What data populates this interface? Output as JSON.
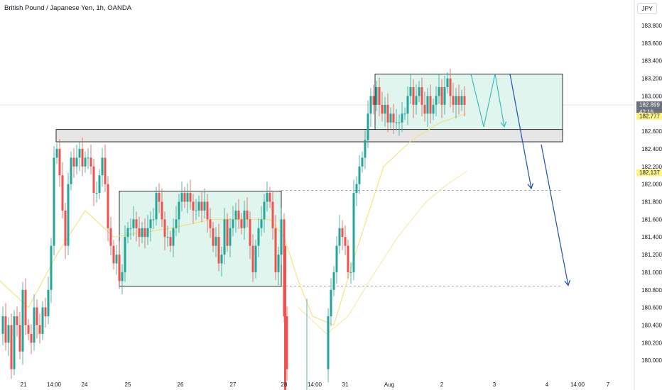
{
  "header": {
    "title": "British Pound / Japanese Yen, 1h, OANDA",
    "currency_button": "JPY"
  },
  "colors": {
    "up": "#26a69a",
    "down": "#ef5350",
    "zone_fill": "#e0f5ee",
    "resistance_fill": "#e6e6e6",
    "ma_fast": "#f5dd6a",
    "ma_slow": "#f9e79a",
    "arrow_teal": "#3fbcc0",
    "arrow_blue": "#1f4fb5"
  },
  "price_scale": [
    "183.800",
    "183.600",
    "183.400",
    "183.200",
    "183.000",
    "182.800",
    "182.600",
    "182.400",
    "182.200",
    "182.000",
    "181.800",
    "181.600",
    "181.400",
    "181.200",
    "181.000",
    "180.800",
    "180.600",
    "180.400",
    "180.200",
    "180.000"
  ],
  "time_axis": [
    "21",
    "14:00",
    "24",
    "25",
    "26",
    "27",
    "28",
    "14:00",
    "31",
    "Aug",
    "2",
    "3",
    "4",
    "14:00",
    "7"
  ],
  "price_labels": {
    "last_price": "182.899",
    "countdown": "42:16",
    "ma_fast_value": "182.777",
    "ma_slow_value": "182.137"
  },
  "chart_data": {
    "type": "candlestick",
    "symbol": "British Pound / Japanese Yen",
    "interval": "1h",
    "source": "OANDA",
    "ylim": [
      179.8,
      184.0
    ],
    "grid": false,
    "last_price": 182.899,
    "series_path_description": "GBPJPY hourly candles from Jul 21 to Aug 2",
    "price_path": [
      [
        0,
        180.3
      ],
      [
        4,
        180.5
      ],
      [
        8,
        180.2
      ],
      [
        12,
        180.4
      ],
      [
        16,
        179.9
      ],
      [
        20,
        180.5
      ],
      [
        24,
        180.4
      ],
      [
        28,
        180.1
      ],
      [
        32,
        180.8
      ],
      [
        36,
        180.4
      ],
      [
        40,
        180.3
      ],
      [
        44,
        180.2
      ],
      [
        48,
        180.6
      ],
      [
        52,
        180.4
      ],
      [
        56,
        180.3
      ],
      [
        60,
        180.6
      ],
      [
        64,
        180.5
      ],
      [
        68,
        180.8
      ],
      [
        72,
        181.3
      ],
      [
        76,
        182.3
      ],
      [
        80,
        182.4
      ],
      [
        84,
        182.1
      ],
      [
        88,
        181.7
      ],
      [
        92,
        181.3
      ],
      [
        96,
        182.0
      ],
      [
        100,
        182.3
      ],
      [
        104,
        182.2
      ],
      [
        108,
        182.3
      ],
      [
        112,
        182.4
      ],
      [
        116,
        182.2
      ],
      [
        120,
        182.3
      ],
      [
        124,
        182.3
      ],
      [
        128,
        182.2
      ],
      [
        132,
        181.9
      ],
      [
        136,
        181.9
      ],
      [
        140,
        182.1
      ],
      [
        144,
        182.3
      ],
      [
        148,
        182.0
      ],
      [
        152,
        181.5
      ],
      [
        156,
        181.3
      ],
      [
        160,
        181.1
      ],
      [
        164,
        181.2
      ],
      [
        168,
        180.9
      ],
      [
        172,
        181.0
      ],
      [
        176,
        181.4
      ],
      [
        180,
        181.5
      ],
      [
        184,
        181.5
      ],
      [
        188,
        181.6
      ],
      [
        192,
        181.5
      ],
      [
        196,
        181.4
      ],
      [
        200,
        181.5
      ],
      [
        204,
        181.4
      ],
      [
        208,
        181.5
      ],
      [
        212,
        181.6
      ],
      [
        216,
        181.6
      ],
      [
        220,
        181.9
      ],
      [
        224,
        181.8
      ],
      [
        228,
        181.6
      ],
      [
        232,
        181.4
      ],
      [
        236,
        181.4
      ],
      [
        240,
        181.3
      ],
      [
        244,
        181.5
      ],
      [
        248,
        181.6
      ],
      [
        252,
        181.8
      ],
      [
        256,
        181.9
      ],
      [
        260,
        181.8
      ],
      [
        264,
        181.9
      ],
      [
        268,
        181.8
      ],
      [
        272,
        181.7
      ],
      [
        276,
        181.7
      ],
      [
        280,
        181.8
      ],
      [
        284,
        181.7
      ],
      [
        288,
        181.8
      ],
      [
        292,
        181.6
      ],
      [
        296,
        181.5
      ],
      [
        300,
        181.3
      ],
      [
        304,
        181.4
      ],
      [
        308,
        181.1
      ],
      [
        312,
        181.2
      ],
      [
        316,
        181.6
      ],
      [
        320,
        181.3
      ],
      [
        324,
        181.5
      ],
      [
        328,
        181.6
      ],
      [
        332,
        181.7
      ],
      [
        336,
        181.6
      ],
      [
        340,
        181.5
      ],
      [
        344,
        181.7
      ],
      [
        348,
        181.6
      ],
      [
        352,
        181.3
      ],
      [
        356,
        181.0
      ],
      [
        360,
        181.3
      ],
      [
        364,
        181.5
      ],
      [
        368,
        181.6
      ],
      [
        372,
        181.8
      ],
      [
        376,
        181.9
      ],
      [
        380,
        181.8
      ],
      [
        384,
        181.5
      ],
      [
        388,
        181.0
      ],
      [
        392,
        181.2
      ],
      [
        396,
        181.6
      ],
      [
        400,
        180.5
      ],
      [
        404,
        179.9
      ],
      [
        458,
        179.9
      ],
      [
        462,
        180.5
      ],
      [
        466,
        180.8
      ],
      [
        470,
        181.0
      ],
      [
        474,
        181.3
      ],
      [
        478,
        181.5
      ],
      [
        482,
        181.4
      ],
      [
        486,
        181.3
      ],
      [
        490,
        181.0
      ],
      [
        494,
        181.0
      ],
      [
        498,
        181.9
      ],
      [
        502,
        182.0
      ],
      [
        506,
        182.2
      ],
      [
        510,
        182.3
      ],
      [
        514,
        182.5
      ],
      [
        518,
        182.8
      ],
      [
        522,
        183.0
      ],
      [
        526,
        182.9
      ],
      [
        530,
        183.1
      ],
      [
        534,
        182.9
      ],
      [
        538,
        182.8
      ],
      [
        542,
        182.9
      ],
      [
        546,
        182.7
      ],
      [
        550,
        182.8
      ],
      [
        554,
        182.7
      ],
      [
        558,
        182.7
      ],
      [
        562,
        182.7
      ],
      [
        566,
        182.8
      ],
      [
        570,
        182.8
      ],
      [
        574,
        183.0
      ],
      [
        578,
        183.1
      ],
      [
        582,
        182.9
      ],
      [
        586,
        183.0
      ],
      [
        590,
        183.1
      ],
      [
        594,
        182.9
      ],
      [
        598,
        182.8
      ],
      [
        602,
        183.0
      ],
      [
        606,
        182.8
      ],
      [
        610,
        182.9
      ],
      [
        614,
        183.0
      ],
      [
        618,
        183.1
      ],
      [
        622,
        182.9
      ],
      [
        626,
        183.1
      ],
      [
        630,
        183.2
      ],
      [
        634,
        183.0
      ],
      [
        638,
        182.9
      ],
      [
        642,
        183.0
      ],
      [
        646,
        182.9
      ],
      [
        650,
        183.0
      ],
      [
        654,
        182.9
      ]
    ],
    "moving_average_fast_path": [
      [
        0,
        180.9
      ],
      [
        40,
        180.6
      ],
      [
        80,
        181.2
      ],
      [
        120,
        181.7
      ],
      [
        160,
        181.4
      ],
      [
        240,
        181.5
      ],
      [
        300,
        181.6
      ],
      [
        380,
        181.6
      ],
      [
        400,
        181.4
      ],
      [
        420,
        180.9
      ],
      [
        440,
        180.5
      ],
      [
        470,
        180.4
      ],
      [
        500,
        181.2
      ],
      [
        540,
        182.2
      ],
      [
        580,
        182.5
      ],
      [
        620,
        182.7
      ],
      [
        656,
        182.8
      ]
    ],
    "moving_average_slow_path": [
      [
        420,
        180.6
      ],
      [
        460,
        180.3
      ],
      [
        490,
        180.5
      ],
      [
        520,
        180.9
      ],
      [
        560,
        181.4
      ],
      [
        600,
        181.8
      ],
      [
        630,
        182.0
      ],
      [
        658,
        182.15
      ]
    ],
    "zones": [
      {
        "role": "accumulation_range",
        "x0": 168,
        "x1": 396,
        "top": 181.92,
        "bottom": 180.84
      },
      {
        "role": "consolidation_range",
        "x0": 528,
        "x1": 792,
        "top": 183.25,
        "bottom": 182.55
      },
      {
        "role": "support_band",
        "x0": 79,
        "x1": 792,
        "top": 182.62,
        "bottom": 182.48
      }
    ],
    "dashed_levels": [
      {
        "price": 181.93,
        "x0": 396,
        "x1": 792
      },
      {
        "price": 180.84,
        "x0": 396,
        "x1": 792
      }
    ],
    "projection_arrows": [
      {
        "role": "teal_zigzag",
        "points": [
          [
            663,
            183.25
          ],
          [
            681,
            182.65
          ],
          [
            697,
            183.25
          ],
          [
            710,
            182.65
          ]
        ]
      },
      {
        "role": "blue_down_1",
        "points": [
          [
            718,
            183.25
          ],
          [
            748,
            181.95
          ]
        ]
      },
      {
        "role": "blue_down_2",
        "points": [
          [
            762,
            182.45
          ],
          [
            800,
            180.85
          ]
        ]
      }
    ]
  }
}
